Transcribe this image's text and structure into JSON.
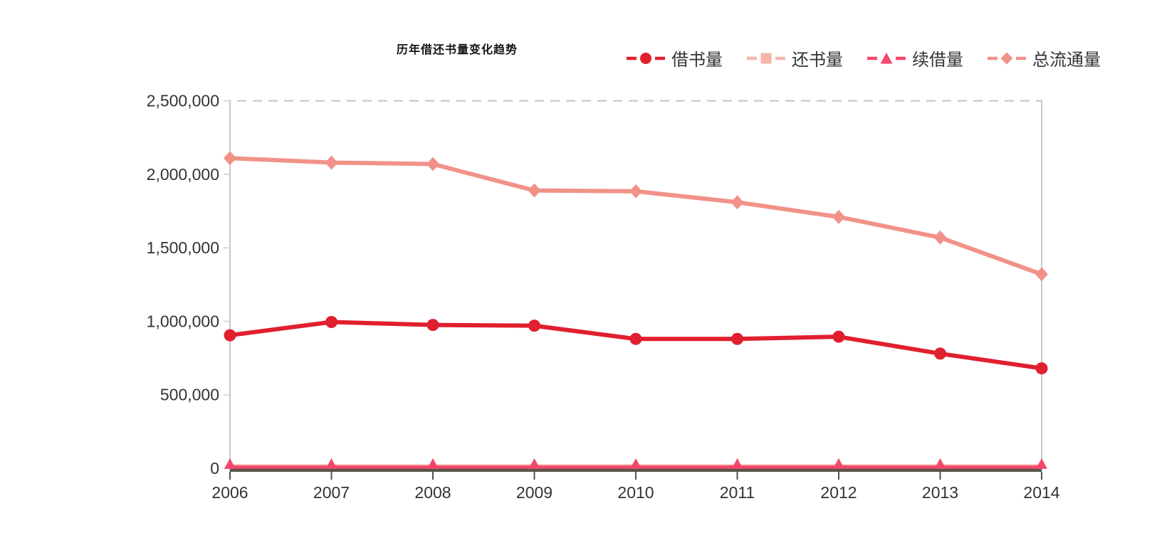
{
  "title": "历年借还书量变化趋势",
  "colors": {
    "borrow_red": "#e01f2f",
    "return_pink": "#f5b5ad",
    "renew_rose": "#f4476b",
    "total_salmon": "#f19288",
    "axis_dark": "#5a544b",
    "axis_light": "#c9c9c9",
    "grid_dashed": "#cccccc",
    "tick_text": "#333333",
    "title_text": "#151515"
  },
  "chart_data": {
    "type": "line",
    "title": "历年借还书量变化趋势",
    "categories": [
      "2006",
      "2007",
      "2008",
      "2009",
      "2010",
      "2011",
      "2012",
      "2013",
      "2014"
    ],
    "xlabel": "",
    "ylabel": "",
    "ylim": [
      0,
      2500000
    ],
    "ytick_step": 500000,
    "ytick_labels": [
      "0",
      "500,000",
      "1,000,000",
      "1,500,000",
      "2,000,000",
      "2,500,000"
    ],
    "grid": "single dashed horizontal gridline at 2,500,000 only",
    "legend_position": "top-right",
    "series": [
      {
        "key": "borrow",
        "name": "借书量",
        "marker": "circle",
        "color": "#e01f2f",
        "values": [
          905000,
          995000,
          975000,
          970000,
          880000,
          880000,
          895000,
          780000,
          680000
        ]
      },
      {
        "key": "return",
        "name": "还书量",
        "marker": "square",
        "color": "#f5b5ad",
        "values": [
          15000,
          15000,
          15000,
          15000,
          15000,
          15000,
          15000,
          15000,
          15000
        ]
      },
      {
        "key": "renew",
        "name": "续借量",
        "marker": "triangle",
        "color": "#f4476b",
        "values": [
          8000,
          8000,
          8000,
          8000,
          8000,
          8000,
          8000,
          8000,
          8000
        ]
      },
      {
        "key": "total",
        "name": "总流通量",
        "marker": "diamond",
        "color": "#f19288",
        "values": [
          2110000,
          2080000,
          2070000,
          1890000,
          1885000,
          1810000,
          1710000,
          1570000,
          1320000
        ]
      }
    ]
  }
}
